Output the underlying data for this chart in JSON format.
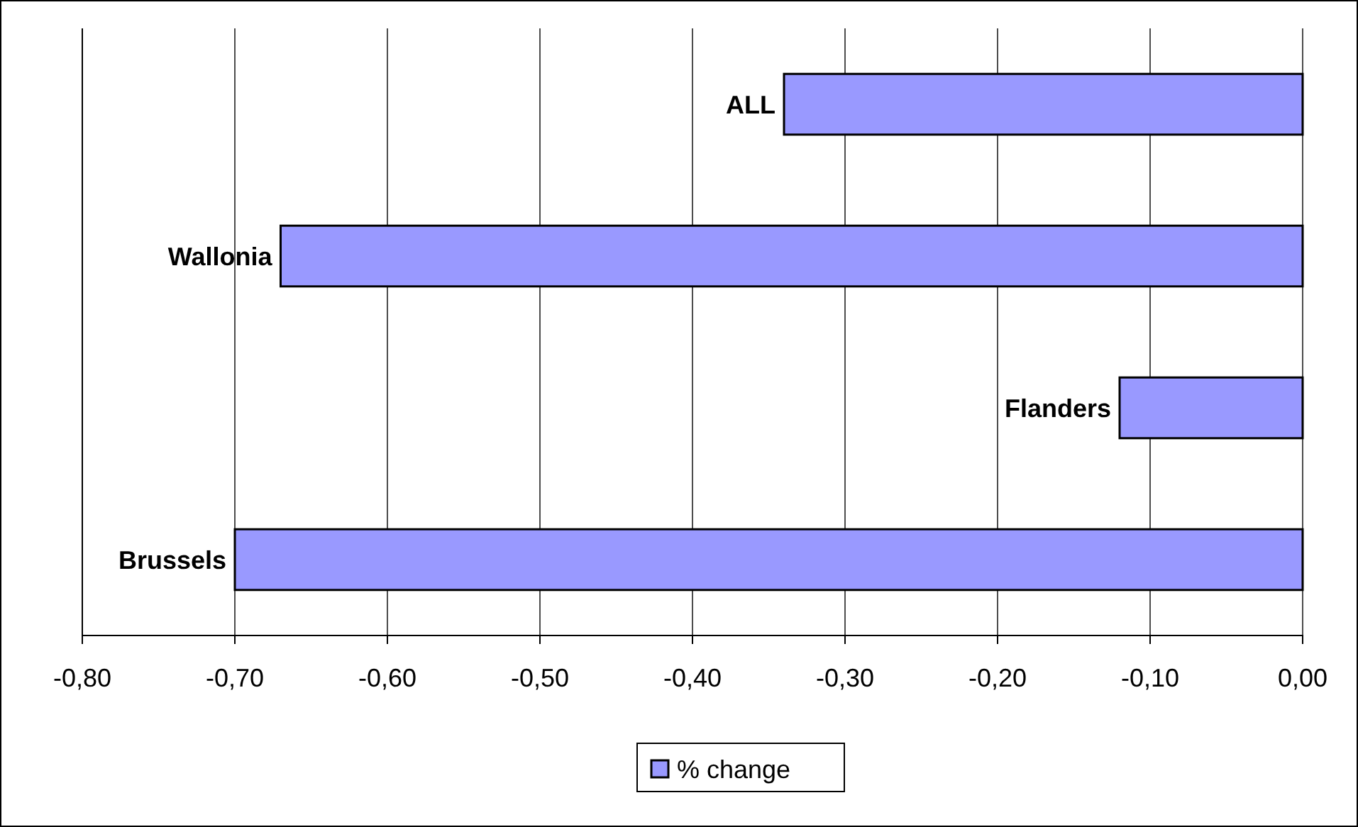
{
  "chart_data": {
    "type": "bar",
    "orientation": "horizontal",
    "categories": [
      "ALL",
      "Wallonia",
      "Flanders",
      "Brussels"
    ],
    "series": [
      {
        "name": "% change",
        "color": "#9999ff",
        "values": [
          -0.34,
          -0.67,
          -0.12,
          -0.7
        ]
      }
    ],
    "xlim": [
      -0.8,
      0
    ],
    "xticks": [
      {
        "value": -0.8,
        "label": "-0,80"
      },
      {
        "value": -0.7,
        "label": "-0,70"
      },
      {
        "value": -0.6,
        "label": "-0,60"
      },
      {
        "value": -0.5,
        "label": "-0,50"
      },
      {
        "value": -0.4,
        "label": "-0,40"
      },
      {
        "value": -0.3,
        "label": "-0,30"
      },
      {
        "value": -0.2,
        "label": "-0,20"
      },
      {
        "value": -0.1,
        "label": "-0,10"
      },
      {
        "value": 0,
        "label": "0,00"
      }
    ],
    "grid": "x",
    "legend": "bottom"
  }
}
